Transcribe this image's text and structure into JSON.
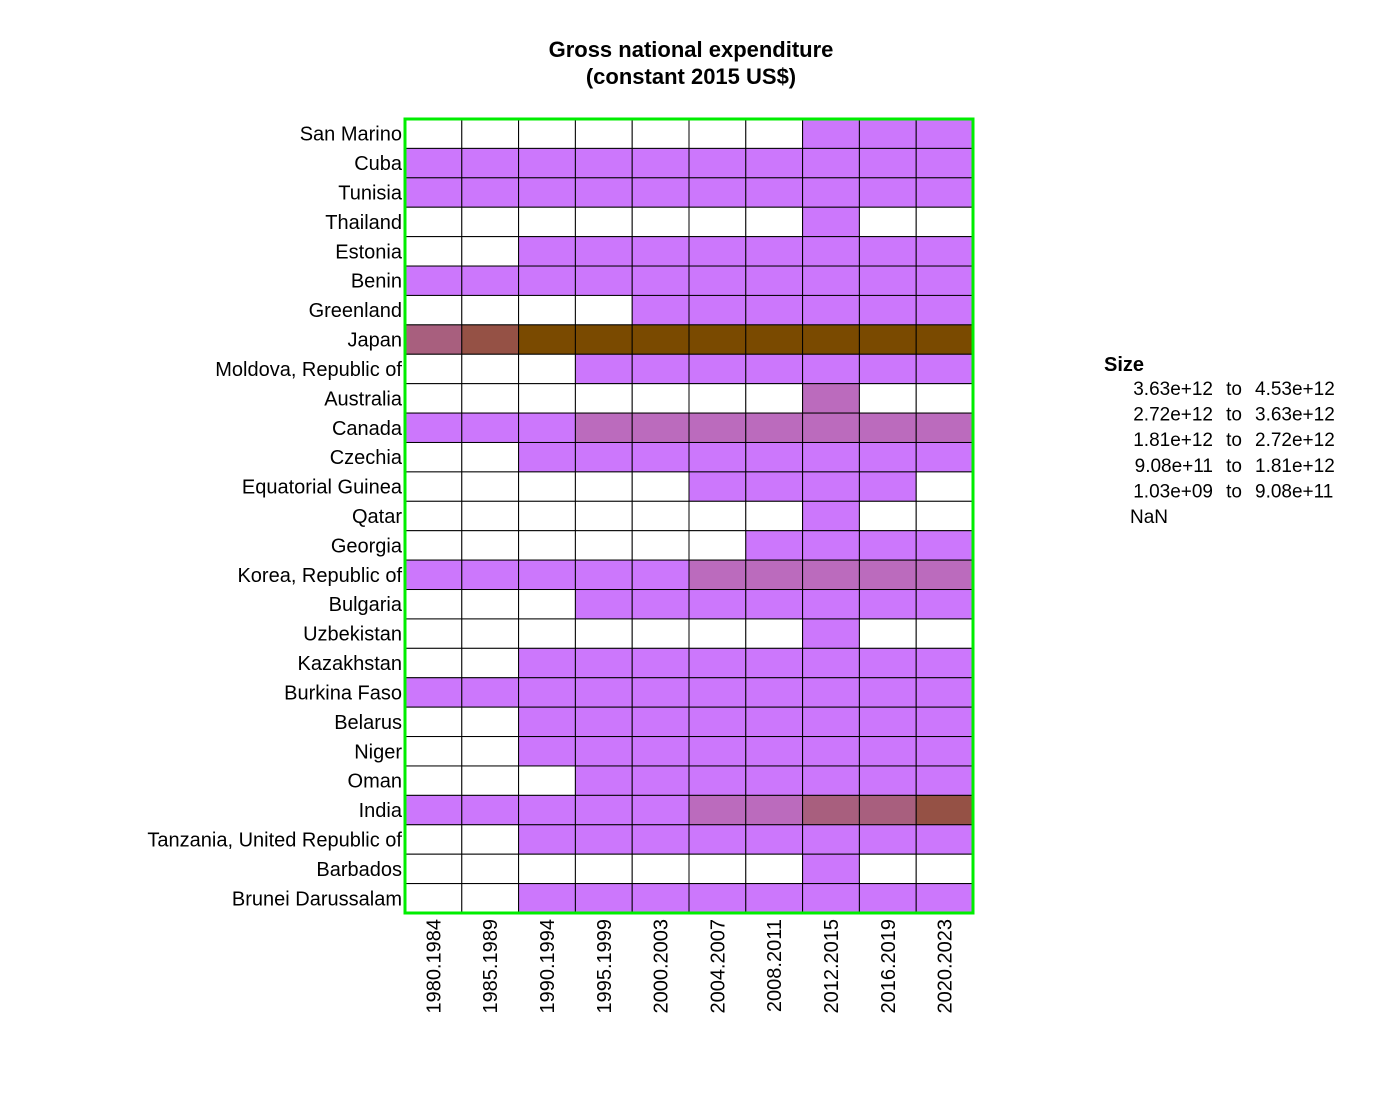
{
  "chart_data": {
    "type": "heatmap",
    "title_line1": "Gross national expenditure",
    "title_line2": "(constant 2015 US$)",
    "xlabel": "",
    "ylabel": "",
    "rows": [
      "San Marino",
      "Cuba",
      "Tunisia",
      "Thailand",
      "Estonia",
      "Benin",
      "Greenland",
      "Japan",
      "Moldova, Republic of",
      "Australia",
      "Canada",
      "Czechia",
      "Equatorial Guinea",
      "Qatar",
      "Georgia",
      "Korea, Republic of",
      "Bulgaria",
      "Uzbekistan",
      "Kazakhstan",
      "Burkina Faso",
      "Belarus",
      "Niger",
      "Oman",
      "India",
      "Tanzania, United Republic of",
      "Barbados",
      "Brunei Darussalam"
    ],
    "columns": [
      "1980.1984",
      "1985.1989",
      "1990.1994",
      "1995.1999",
      "2000.2003",
      "2004.2007",
      "2008.2011",
      "2012.2015",
      "2016.2019",
      "2020.2023"
    ],
    "matrix": [
      [
        null,
        null,
        null,
        null,
        null,
        null,
        null,
        0,
        0,
        0
      ],
      [
        0,
        0,
        0,
        0,
        0,
        0,
        0,
        0,
        0,
        0
      ],
      [
        0,
        0,
        0,
        0,
        0,
        0,
        0,
        0,
        0,
        0
      ],
      [
        null,
        null,
        null,
        null,
        null,
        null,
        null,
        0,
        null,
        null
      ],
      [
        null,
        null,
        0,
        0,
        0,
        0,
        0,
        0,
        0,
        0
      ],
      [
        0,
        0,
        0,
        0,
        0,
        0,
        0,
        0,
        0,
        0
      ],
      [
        null,
        null,
        null,
        null,
        0,
        0,
        0,
        0,
        0,
        0
      ],
      [
        2,
        3,
        4,
        4,
        4,
        4,
        4,
        4,
        4,
        4
      ],
      [
        null,
        null,
        null,
        0,
        0,
        0,
        0,
        0,
        0,
        0
      ],
      [
        null,
        null,
        null,
        null,
        null,
        null,
        null,
        1,
        null,
        null
      ],
      [
        0,
        0,
        0,
        1,
        1,
        1,
        1,
        1,
        1,
        1
      ],
      [
        null,
        null,
        0,
        0,
        0,
        0,
        0,
        0,
        0,
        0
      ],
      [
        null,
        null,
        null,
        null,
        null,
        0,
        0,
        0,
        0,
        null
      ],
      [
        null,
        null,
        null,
        null,
        null,
        null,
        null,
        0,
        null,
        null
      ],
      [
        null,
        null,
        null,
        null,
        null,
        null,
        0,
        0,
        0,
        0
      ],
      [
        0,
        0,
        0,
        0,
        0,
        1,
        1,
        1,
        1,
        1
      ],
      [
        null,
        null,
        null,
        0,
        0,
        0,
        0,
        0,
        0,
        0
      ],
      [
        null,
        null,
        null,
        null,
        null,
        null,
        null,
        0,
        null,
        null
      ],
      [
        null,
        null,
        0,
        0,
        0,
        0,
        0,
        0,
        0,
        0
      ],
      [
        0,
        0,
        0,
        0,
        0,
        0,
        0,
        0,
        0,
        0
      ],
      [
        null,
        null,
        0,
        0,
        0,
        0,
        0,
        0,
        0,
        0
      ],
      [
        null,
        null,
        0,
        0,
        0,
        0,
        0,
        0,
        0,
        0
      ],
      [
        null,
        null,
        null,
        0,
        0,
        0,
        0,
        0,
        0,
        0
      ],
      [
        0,
        0,
        0,
        0,
        0,
        1,
        1,
        2,
        2,
        3
      ],
      [
        null,
        null,
        0,
        0,
        0,
        0,
        0,
        0,
        0,
        0
      ],
      [
        null,
        null,
        null,
        null,
        null,
        null,
        null,
        0,
        null,
        null
      ],
      [
        null,
        null,
        0,
        0,
        0,
        0,
        0,
        0,
        0,
        0
      ]
    ],
    "legend": {
      "title": "Size",
      "placement": "right",
      "connector": "to",
      "bins": [
        {
          "from": "3.63e+12",
          "to": "4.53e+12",
          "color": "#7a4a00"
        },
        {
          "from": "2.72e+12",
          "to": "3.63e+12",
          "color": "#955145"
        },
        {
          "from": "1.81e+12",
          "to": "2.72e+12",
          "color": "#a85f7e"
        },
        {
          "from": "9.08e+11",
          "to": "1.81e+12",
          "color": "#bb6bbd"
        },
        {
          "from": "1.03e+09",
          "to": "9.08e+11",
          "color": "#cc77fc"
        }
      ],
      "nan_label": "NaN",
      "nan_color": "#ffffff"
    },
    "bin_colors": [
      "#cc77fc",
      "#bb6bbd",
      "#a85f7e",
      "#955145",
      "#7a4a00"
    ],
    "nan_color": "#ffffff",
    "frame_color": "#00ee00",
    "grid_color": "#000000"
  }
}
